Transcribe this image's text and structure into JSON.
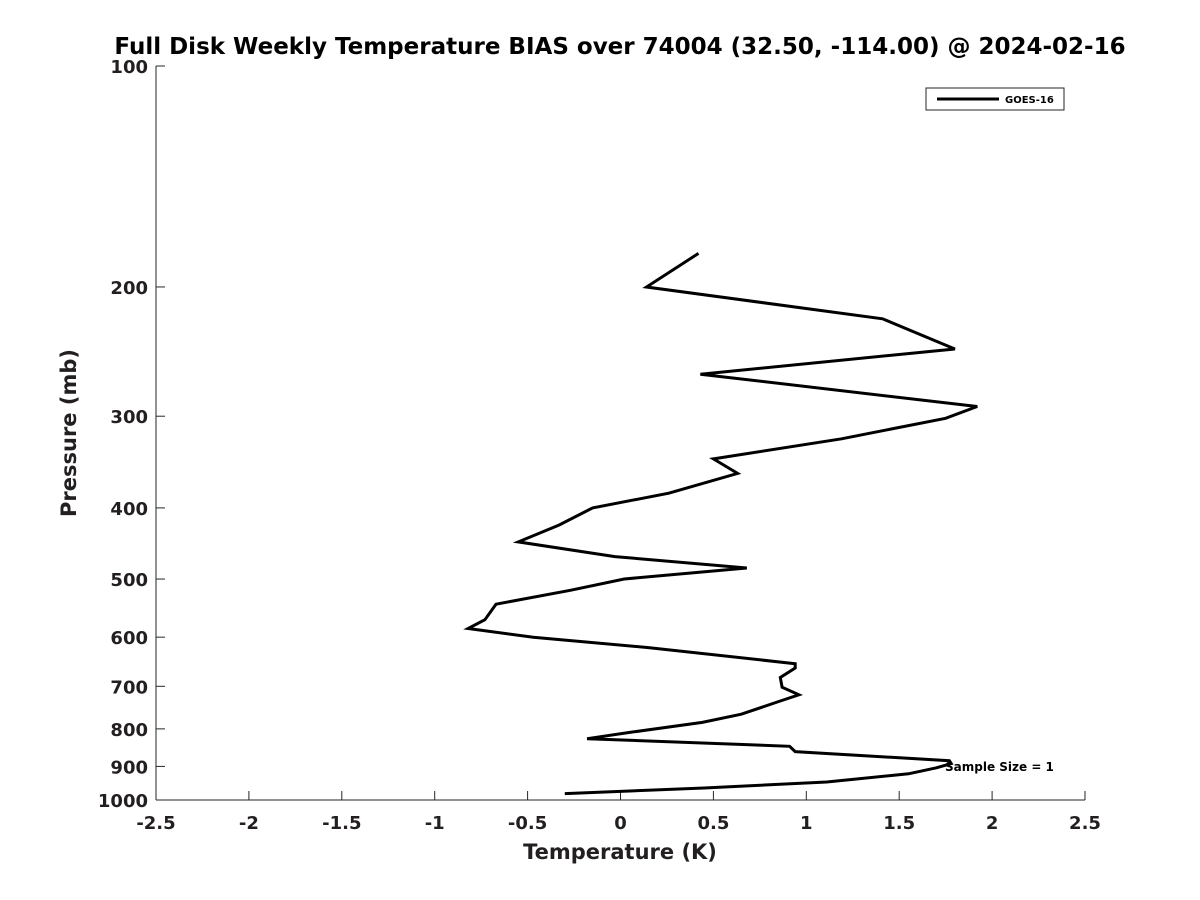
{
  "chart_data": {
    "type": "line",
    "title": "Full Disk Weekly Temperature BIAS over 74004 (32.50, -114.00) @ 2024-02-16",
    "xlabel": "Temperature (K)",
    "ylabel": "Pressure (mb)",
    "xlim": [
      -2.5,
      2.5
    ],
    "ylim": [
      1000,
      100
    ],
    "y_scale": "log",
    "x_ticks": [
      "-2.5",
      "-2",
      "-1.5",
      "-1",
      "-0.5",
      "0",
      "0.5",
      "1",
      "1.5",
      "2",
      "2.5"
    ],
    "y_ticks": [
      "100",
      "200",
      "300",
      "400",
      "500",
      "600",
      "700",
      "800",
      "900",
      "1000"
    ],
    "grid": false,
    "legend_position": "top-right",
    "annotation": "Sample Size = 1",
    "series": [
      {
        "name": "GOES-16",
        "color": "#000000",
        "points": [
          [
            0.42,
            180
          ],
          [
            0.14,
            200
          ],
          [
            1.41,
            221
          ],
          [
            1.8,
            243
          ],
          [
            0.43,
            263
          ],
          [
            1.92,
            291
          ],
          [
            1.75,
            302
          ],
          [
            1.19,
            322
          ],
          [
            0.5,
            343
          ],
          [
            0.63,
            359
          ],
          [
            0.26,
            382
          ],
          [
            -0.15,
            400
          ],
          [
            -0.33,
            422
          ],
          [
            -0.55,
            445
          ],
          [
            -0.03,
            466
          ],
          [
            0.68,
            483
          ],
          [
            0.02,
            500
          ],
          [
            -0.27,
            518
          ],
          [
            -0.67,
            541
          ],
          [
            -0.73,
            568
          ],
          [
            -0.82,
            584
          ],
          [
            -0.47,
            600
          ],
          [
            0.15,
            620
          ],
          [
            0.94,
            652
          ],
          [
            0.94,
            661
          ],
          [
            0.86,
            681
          ],
          [
            0.87,
            702
          ],
          [
            0.96,
            719
          ],
          [
            0.86,
            733
          ],
          [
            0.65,
            764
          ],
          [
            0.44,
            784
          ],
          [
            0.05,
            809
          ],
          [
            -0.18,
            825
          ],
          [
            0.91,
            845
          ],
          [
            0.94,
            859
          ],
          [
            1.77,
            884
          ],
          [
            1.78,
            892
          ],
          [
            1.7,
            904
          ],
          [
            1.55,
            921
          ],
          [
            1.11,
            945
          ],
          [
            0.45,
            963
          ],
          [
            -0.3,
            980
          ]
        ]
      }
    ]
  }
}
